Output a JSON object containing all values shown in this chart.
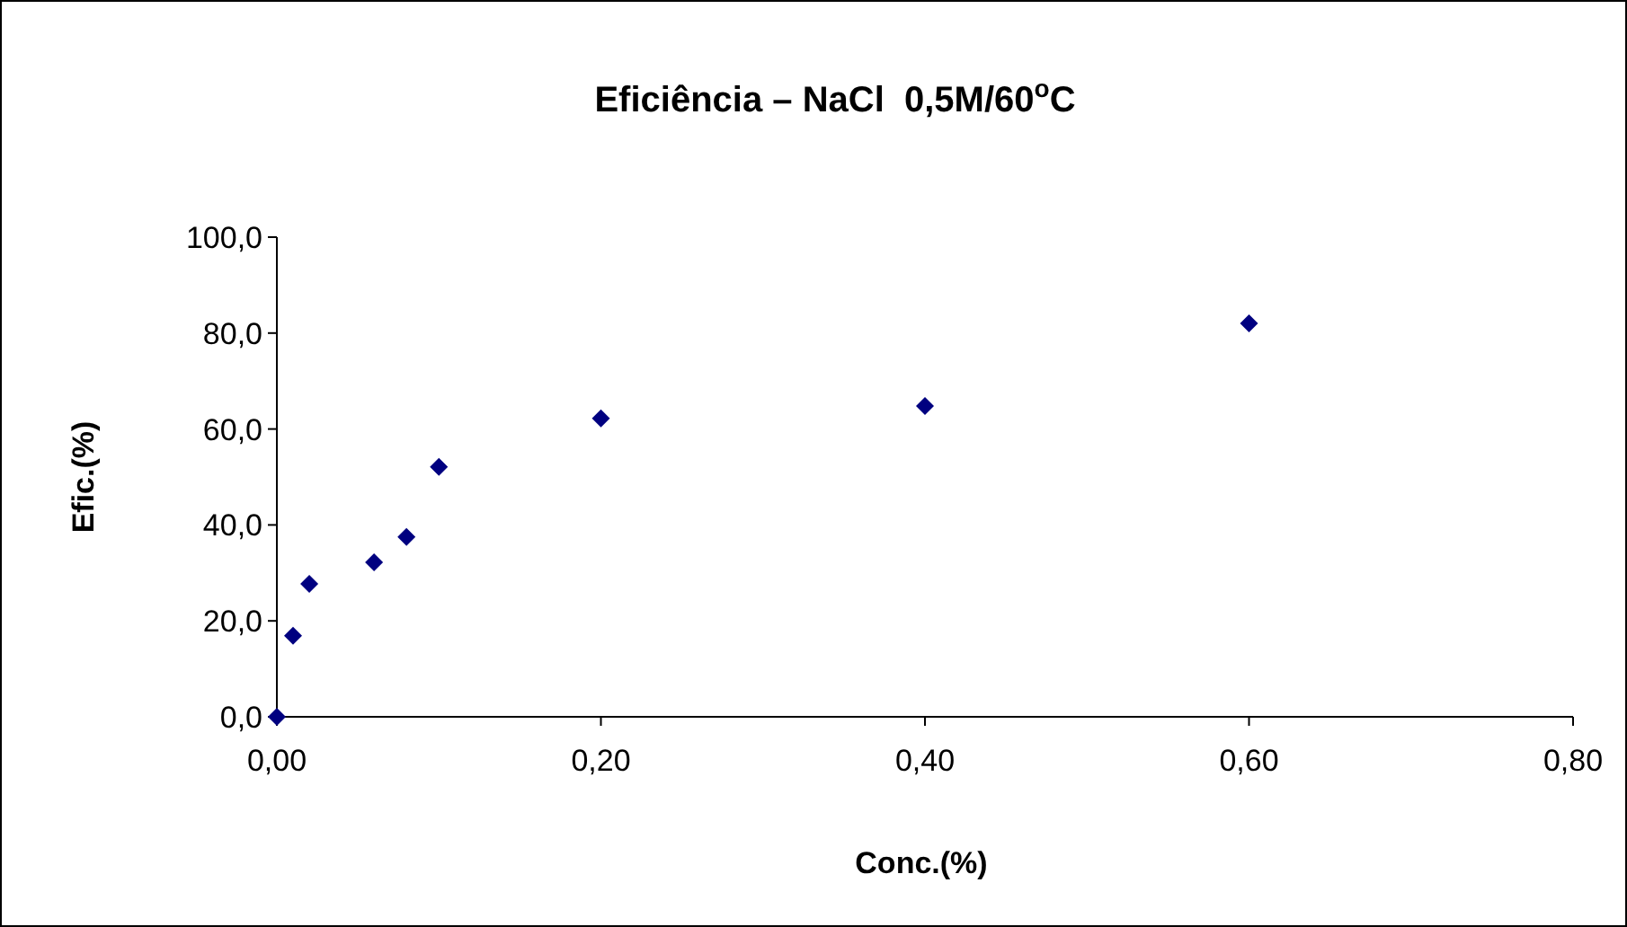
{
  "chart_data": {
    "type": "scatter",
    "title": "Eficiência – NaCl  0,5M/60$^{o}$C",
    "xlabel": "Conc.(%)",
    "ylabel": "Efic.(%)",
    "x": [
      0,
      0.01,
      0.02,
      0.06,
      0.08,
      0.1,
      0.2,
      0.4,
      0.6
    ],
    "series": [
      {
        "color": "#000080",
        "values": [
          0,
          16.9,
          27.7,
          32.2,
          37.5,
          52.1,
          62.2,
          64.8,
          82.0
        ]
      }
    ],
    "xlim": [
      0,
      0.8
    ],
    "xticks": [
      {
        "value": 0,
        "label": "0,00"
      },
      {
        "value": 0.2,
        "label": "0,20"
      },
      {
        "value": 0.4,
        "label": "0,40"
      },
      {
        "value": 0.6,
        "label": "0,60"
      },
      {
        "value": 0.8,
        "label": "0,80"
      }
    ],
    "ylim": [
      0,
      100
    ],
    "yticks": [
      {
        "value": 0,
        "label": "0,0"
      },
      {
        "value": 20,
        "label": "20,0"
      },
      {
        "value": 40,
        "label": "40,0"
      },
      {
        "value": 60,
        "label": "60,0"
      },
      {
        "value": 80,
        "label": "80,0"
      },
      {
        "value": 100,
        "label": "100,0"
      }
    ],
    "grid": false,
    "marker": "diamond"
  }
}
